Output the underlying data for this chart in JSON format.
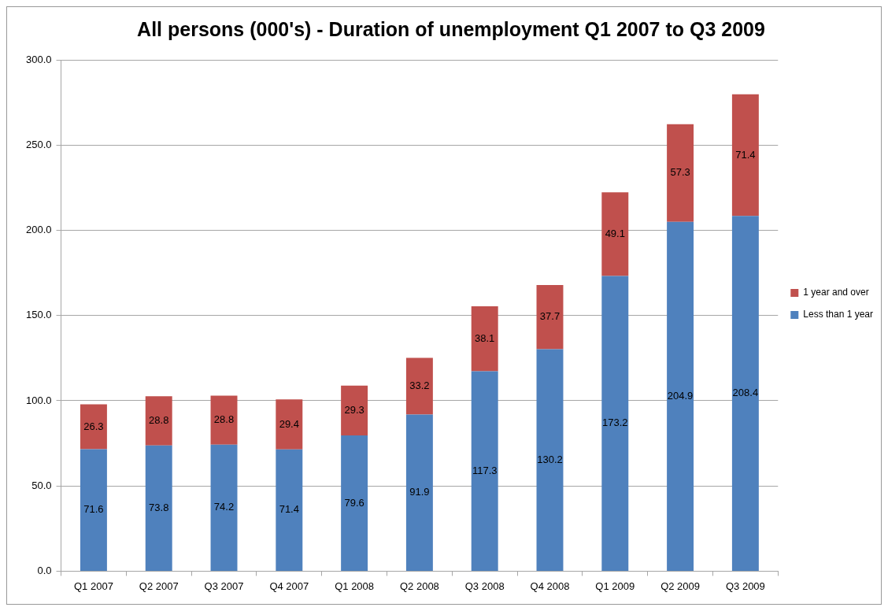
{
  "chart_data": {
    "type": "bar",
    "title": "All persons (000's) - Duration of unemployment Q1 2007 to Q3 2009",
    "categories": [
      "Q1 2007",
      "Q2 2007",
      "Q3 2007",
      "Q4 2007",
      "Q1 2008",
      "Q2 2008",
      "Q3 2008",
      "Q4 2008",
      "Q1 2009",
      "Q2 2009",
      "Q3 2009"
    ],
    "series": [
      {
        "name": "Less than 1 year",
        "color": "#4f81bd",
        "values": [
          71.6,
          73.8,
          74.2,
          71.4,
          79.6,
          91.9,
          117.3,
          130.2,
          173.2,
          204.9,
          208.4
        ]
      },
      {
        "name": "1 year and over",
        "color": "#c0504d",
        "values": [
          26.3,
          28.8,
          28.8,
          29.4,
          29.3,
          33.2,
          38.1,
          37.7,
          49.1,
          57.3,
          71.4
        ]
      }
    ],
    "stacked": true,
    "ylim": [
      0,
      300
    ],
    "yticks": [
      {
        "value": 0,
        "label": "0.0"
      },
      {
        "value": 50,
        "label": "50.0"
      },
      {
        "value": 100,
        "label": "100.0"
      },
      {
        "value": 150,
        "label": "150.0"
      },
      {
        "value": 200,
        "label": "200.0"
      },
      {
        "value": 250,
        "label": "250.0"
      },
      {
        "value": 300,
        "label": "300.0"
      }
    ],
    "grid": "y",
    "legend": "right",
    "data_labels": true
  }
}
